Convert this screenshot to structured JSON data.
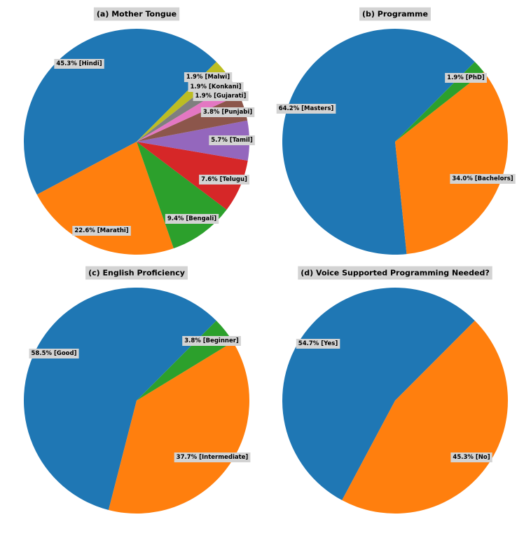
{
  "chart_data": [
    {
      "type": "pie",
      "title": "(a) Mother Tongue",
      "categories": [
        "Hindi",
        "Marathi",
        "Bengali",
        "Telugu",
        "Tamil",
        "Punjabi",
        "Gujarati",
        "Konkani",
        "Malwi"
      ],
      "values": [
        45.3,
        22.6,
        9.4,
        7.6,
        5.7,
        3.8,
        1.9,
        1.9,
        1.9
      ],
      "labels": [
        "45.3% [Hindi]",
        "22.6% [Marathi]",
        "9.4% [Bengali]",
        "7.6% [Telugu]",
        "5.7% [Tamil]",
        "3.8% [Punjabi]",
        "1.9% [Gujarati]",
        "1.9% [Konkani]",
        "1.9% [Malwi]"
      ],
      "colors": [
        "#1f77b4",
        "#ff7f0e",
        "#2ca02c",
        "#d62728",
        "#9467bd",
        "#8c564b",
        "#e377c2",
        "#7f7f7f",
        "#bcbd22"
      ],
      "start_angle_deg": 45,
      "direction": "counterclockwise"
    },
    {
      "type": "pie",
      "title": "(b) Programme",
      "categories": [
        "Masters",
        "Bachelors",
        "PhD"
      ],
      "values": [
        64.2,
        34.0,
        1.9
      ],
      "labels": [
        "64.2% [Masters]",
        "34.0% [Bachelors]",
        "1.9% [PhD]"
      ],
      "colors": [
        "#1f77b4",
        "#ff7f0e",
        "#2ca02c"
      ],
      "start_angle_deg": 45,
      "direction": "counterclockwise"
    },
    {
      "type": "pie",
      "title": "(c) English Proficiency",
      "categories": [
        "Good",
        "Intermediate",
        "Beginner"
      ],
      "values": [
        58.5,
        37.7,
        3.8
      ],
      "labels": [
        "58.5% [Good]",
        "37.7% [Intermediate]",
        "3.8% [Beginner]"
      ],
      "colors": [
        "#1f77b4",
        "#ff7f0e",
        "#2ca02c"
      ],
      "start_angle_deg": 45,
      "direction": "counterclockwise"
    },
    {
      "type": "pie",
      "title": "(d) Voice Supported Programming Needed?",
      "categories": [
        "Yes",
        "No"
      ],
      "values": [
        54.7,
        45.3
      ],
      "labels": [
        "54.7% [Yes]",
        "45.3% [No]"
      ],
      "colors": [
        "#1f77b4",
        "#ff7f0e"
      ],
      "start_angle_deg": 45,
      "direction": "counterclockwise"
    }
  ]
}
